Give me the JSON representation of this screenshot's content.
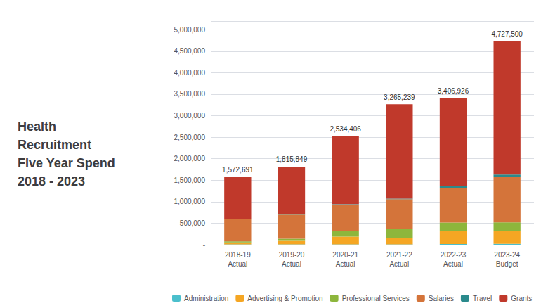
{
  "chart_data": {
    "type": "bar",
    "title": "Health\nRecruitment\nFive Year Spend\n2018 - 2023",
    "stacked": true,
    "categories": [
      "2018-19\nActual",
      "2019-20\nActual",
      "2020-21\nActual",
      "2021-22\nActual",
      "2022-23\nActual",
      "2023-24\nBudget"
    ],
    "series": [
      {
        "name": "Administration",
        "color": "#4bbfcc",
        "values": [
          8000,
          8000,
          8000,
          10000,
          15000,
          20000
        ]
      },
      {
        "name": "Advertising & Promotion",
        "color": "#f5a623",
        "values": [
          45000,
          80000,
          180000,
          150000,
          300000,
          300000
        ]
      },
      {
        "name": "Professional Services",
        "color": "#8db63c",
        "values": [
          25000,
          50000,
          130000,
          200000,
          200000,
          200000
        ]
      },
      {
        "name": "Salaries",
        "color": "#d4743a",
        "values": [
          520000,
          560000,
          620000,
          700000,
          800000,
          1050000
        ]
      },
      {
        "name": "Travel",
        "color": "#2a8a8c",
        "values": [
          5000,
          5000,
          8000,
          10000,
          50000,
          60000
        ]
      },
      {
        "name": "Grants",
        "color": "#c0392b",
        "values": [
          969691,
          1112849,
          1588406,
          2195239,
          2041926,
          3097500
        ]
      }
    ],
    "totals": [
      1572691,
      1815849,
      2534406,
      3265239,
      3406926,
      4727500
    ],
    "total_labels": [
      "1,572,691",
      "1,815,849",
      "2,534,406",
      "3,265,239",
      "3,406,926",
      "4,727,500"
    ],
    "ylim": [
      0,
      5200000
    ],
    "yticks": [
      {
        "value": 0,
        "label": "-"
      },
      {
        "value": 500000,
        "label": "500,000"
      },
      {
        "value": 1000000,
        "label": "1,000,000"
      },
      {
        "value": 1500000,
        "label": "1,500,000"
      },
      {
        "value": 2000000,
        "label": "2,000,000"
      },
      {
        "value": 2500000,
        "label": "2,500,000"
      },
      {
        "value": 3000000,
        "label": "3,000,000"
      },
      {
        "value": 3500000,
        "label": "3,500,000"
      },
      {
        "value": 4000000,
        "label": "4,000,000"
      },
      {
        "value": 4500000,
        "label": "4,500,000"
      },
      {
        "value": 5000000,
        "label": "5,000,000"
      }
    ],
    "grid": true,
    "legend": "bottom"
  }
}
